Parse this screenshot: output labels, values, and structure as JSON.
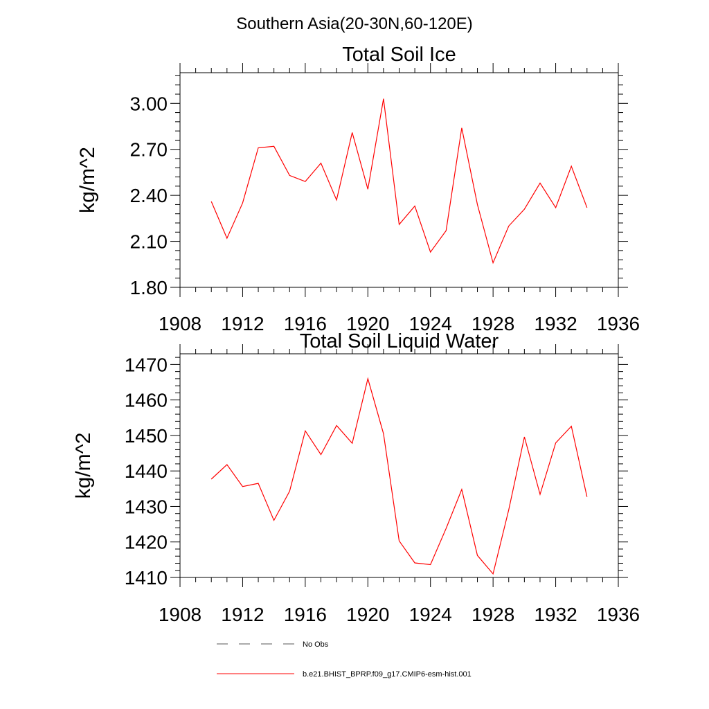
{
  "figure": {
    "title": "Southern Asia(20-30N,60-120E)",
    "legend": [
      {
        "label": "No Obs",
        "color": "#555555",
        "style": "dashed"
      },
      {
        "label": "b.e21.BHIST_BPRP.f09_g17.CMIP6-esm-hist.001",
        "color": "#ff0000",
        "style": "solid"
      }
    ]
  },
  "chart_data": [
    {
      "type": "line",
      "title": "Total Soil Ice",
      "ylabel": "kg/m^2",
      "xlim": [
        1908,
        1936
      ],
      "ylim": [
        1.8,
        3.2
      ],
      "xticks": [
        "1908",
        "1912",
        "1916",
        "1920",
        "1924",
        "1928",
        "1932",
        "1936"
      ],
      "yticks": [
        "1.80",
        "2.10",
        "2.40",
        "2.70",
        "3.00"
      ],
      "series": [
        {
          "name": "b.e21.BHIST_BPRP.f09_g17.CMIP6-esm-hist.001",
          "color": "#ff0000",
          "x": [
            1910,
            1911,
            1912,
            1913,
            1914,
            1915,
            1916,
            1917,
            1918,
            1919,
            1920,
            1921,
            1922,
            1923,
            1924,
            1925,
            1926,
            1927,
            1928,
            1929,
            1930,
            1931,
            1932,
            1933,
            1934
          ],
          "values": [
            2.36,
            2.12,
            2.35,
            2.71,
            2.72,
            2.53,
            2.49,
            2.61,
            2.37,
            2.81,
            2.44,
            3.03,
            2.21,
            2.33,
            2.03,
            2.17,
            2.84,
            2.34,
            1.96,
            2.2,
            2.31,
            2.48,
            2.32,
            2.59,
            2.32
          ]
        }
      ]
    },
    {
      "type": "line",
      "title": "Total Soil Liquid Water",
      "ylabel": "kg/m^2",
      "xlim": [
        1908,
        1936
      ],
      "ylim": [
        1410,
        1473
      ],
      "xticks": [
        "1908",
        "1912",
        "1916",
        "1920",
        "1924",
        "1928",
        "1932",
        "1936"
      ],
      "yticks": [
        "1410",
        "1420",
        "1430",
        "1440",
        "1450",
        "1460",
        "1470"
      ],
      "series": [
        {
          "name": "b.e21.BHIST_BPRP.f09_g17.CMIP6-esm-hist.001",
          "color": "#ff0000",
          "x": [
            1910,
            1911,
            1912,
            1913,
            1914,
            1915,
            1916,
            1917,
            1918,
            1919,
            1920,
            1921,
            1922,
            1923,
            1924,
            1925,
            1926,
            1927,
            1928,
            1929,
            1930,
            1931,
            1932,
            1933,
            1934
          ],
          "values": [
            1437.7,
            1441.8,
            1435.6,
            1436.5,
            1426.1,
            1434.3,
            1451.3,
            1444.6,
            1452.8,
            1447.8,
            1466.0,
            1450.5,
            1420.3,
            1414.1,
            1413.6,
            1423.8,
            1434.8,
            1416.2,
            1411.0,
            1429.1,
            1449.6,
            1433.4,
            1447.9,
            1452.6,
            1432.7
          ]
        }
      ]
    }
  ]
}
